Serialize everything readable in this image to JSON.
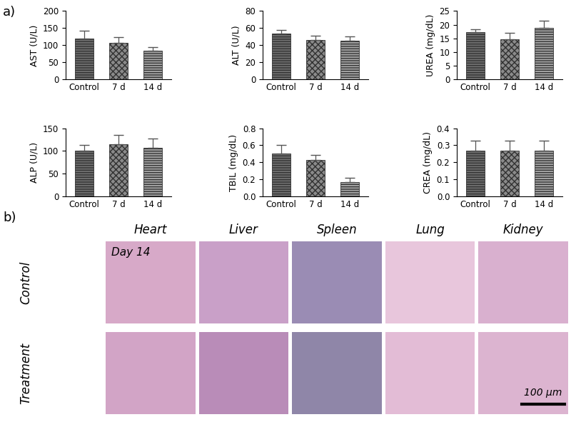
{
  "panel_labels": [
    "a)",
    "b)"
  ],
  "chart_data": [
    {
      "type": "bar",
      "ylabel": "AST (U/L)",
      "categories": [
        "Control",
        "7 d",
        "14 d"
      ],
      "values": [
        120,
        107,
        85
      ],
      "errors": [
        22,
        17,
        10
      ],
      "colors": [
        "#6e6e6e",
        "#8a8a8a",
        "#a5a5a5"
      ],
      "ylim": [
        0,
        200
      ],
      "yticks": [
        0,
        50,
        100,
        150,
        200
      ]
    },
    {
      "type": "bar",
      "ylabel": "ALT (U/L)",
      "categories": [
        "Control",
        "7 d",
        "14 d"
      ],
      "values": [
        54,
        46,
        45
      ],
      "errors": [
        4,
        5,
        5
      ],
      "colors": [
        "#6e6e6e",
        "#8a8a8a",
        "#a5a5a5"
      ],
      "ylim": [
        0,
        80
      ],
      "yticks": [
        0,
        20,
        40,
        60,
        80
      ]
    },
    {
      "type": "bar",
      "ylabel": "UREA (mg/dL)",
      "categories": [
        "Control",
        "7 d",
        "14 d"
      ],
      "values": [
        17.3,
        14.7,
        19
      ],
      "errors": [
        1,
        2.3,
        2.5
      ],
      "colors": [
        "#6e6e6e",
        "#8a8a8a",
        "#a5a5a5"
      ],
      "ylim": [
        0,
        25
      ],
      "yticks": [
        0,
        5,
        10,
        15,
        20,
        25
      ]
    },
    {
      "type": "bar",
      "ylabel": "ALP (U/L)",
      "categories": [
        "Control",
        "7 d",
        "14 d"
      ],
      "values": [
        100,
        115,
        107
      ],
      "errors": [
        13,
        20,
        20
      ],
      "colors": [
        "#6e6e6e",
        "#8a8a8a",
        "#a5a5a5"
      ],
      "ylim": [
        0,
        150
      ],
      "yticks": [
        0,
        50,
        100,
        150
      ]
    },
    {
      "type": "bar",
      "ylabel": "TBIL (mg/dL)",
      "categories": [
        "Control",
        "7 d",
        "14 d"
      ],
      "values": [
        0.5,
        0.43,
        0.17
      ],
      "errors": [
        0.1,
        0.06,
        0.05
      ],
      "colors": [
        "#6e6e6e",
        "#8a8a8a",
        "#a5a5a5"
      ],
      "ylim": [
        0,
        0.8
      ],
      "yticks": [
        {
          "value": 0,
          "label": "0.0"
        },
        0.2,
        0.4,
        0.6,
        0.8
      ]
    },
    {
      "type": "bar",
      "ylabel": "CREA (mg/dL)",
      "categories": [
        "Control",
        "7 d",
        "14 d"
      ],
      "values": [
        0.27,
        0.27,
        0.27
      ],
      "errors": [
        0.055,
        0.055,
        0.055
      ],
      "colors": [
        "#6e6e6e",
        "#8a8a8a",
        "#a5a5a5"
      ],
      "ylim": [
        0,
        0.4
      ],
      "yticks": [
        {
          "value": 0,
          "label": "0.0"
        },
        0.1,
        0.2,
        0.3,
        0.4
      ]
    }
  ],
  "histology": {
    "columns": [
      "Heart",
      "Liver",
      "Spleen",
      "Lung",
      "Kidney"
    ],
    "rows": [
      "Control",
      "Treatment"
    ],
    "label": "Day 14",
    "scale_bar": "100 µm"
  }
}
